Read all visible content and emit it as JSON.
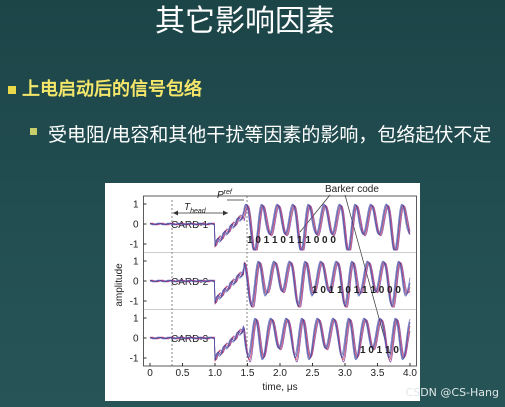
{
  "header": {
    "title": "其它影响因素"
  },
  "bullets": [
    {
      "text": "上电启动后的信号包络",
      "children": [
        {
          "text": "受电阻/电容和其他干扰等因素的影响，包络起伏不定"
        }
      ]
    }
  ],
  "figure": {
    "panels": [
      {
        "label": "CARD-1",
        "bits": "1 0 1 1 0 1 1 1 0 0 0"
      },
      {
        "label": "CARD-2",
        "bits": "1 0 1 1 0 1 1 1 0 0 0"
      },
      {
        "label": "CARD-3",
        "bits": "1 0 1 1 0"
      }
    ],
    "yticks": [
      1,
      0,
      -1
    ],
    "xlim": [
      -0.1,
      4.1
    ],
    "xticks": [
      0,
      0.5,
      {
        "value": 1,
        "label": "1.0"
      },
      1.5,
      {
        "value": 2,
        "label": "2.0"
      },
      2.5,
      {
        "value": 3,
        "label": "3.0"
      },
      3.5,
      {
        "value": 4,
        "label": "4.0"
      }
    ],
    "xlabel": "time, μs",
    "ylabel": "amplitude",
    "t_head": {
      "main": "T",
      "sub": "head"
    },
    "p_ref": {
      "main": "P",
      "sub": "ref"
    },
    "barker": "Barker code"
  },
  "watermark": "CSDN @CS-Hang"
}
